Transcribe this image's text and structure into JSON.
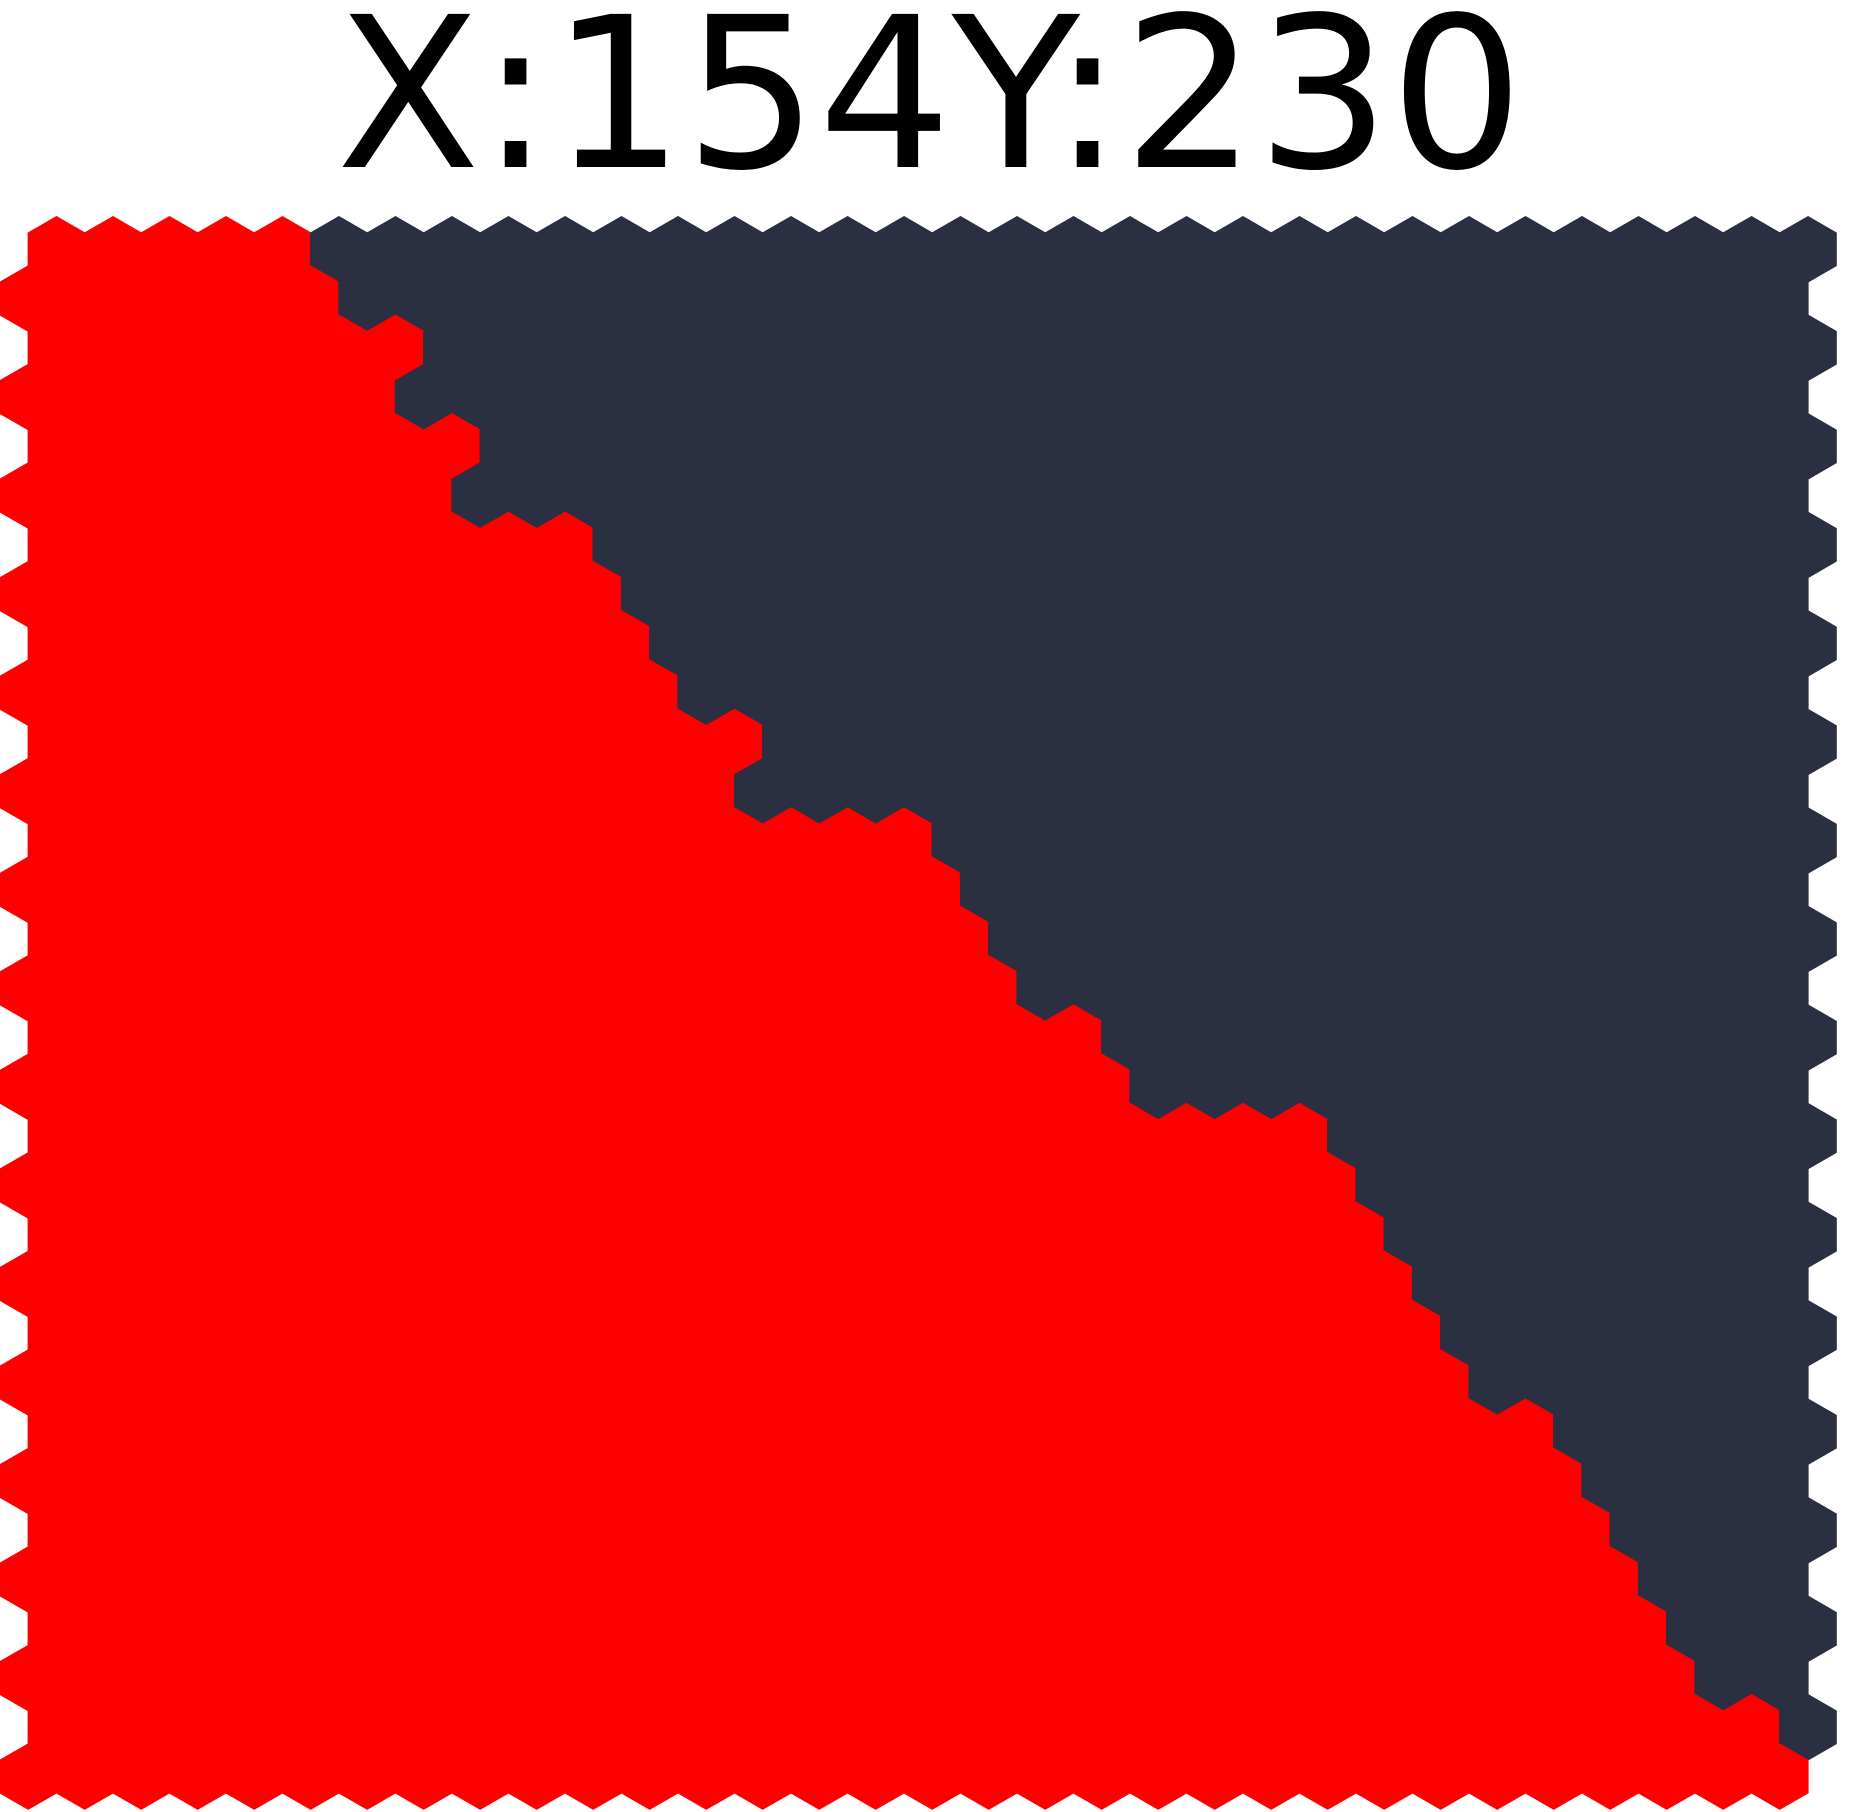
{
  "readout": {
    "x_label": "X:",
    "x_value": "154",
    "y_label": "Y:",
    "y_value": "230"
  },
  "board": {
    "columns": 32,
    "rows": 32,
    "colors": {
      "red_territory": "#ff0000",
      "dark_territory": "#2a2f41",
      "background": "#ffffff"
    },
    "dark_region_first_column_by_row": [
      5,
      6,
      7,
      7,
      8,
      8,
      10,
      11,
      11,
      12,
      13,
      13,
      16,
      17,
      17,
      18,
      19,
      20,
      23,
      24,
      24,
      25,
      25,
      26,
      27,
      28,
      28,
      29,
      29,
      30,
      31,
      32
    ]
  }
}
